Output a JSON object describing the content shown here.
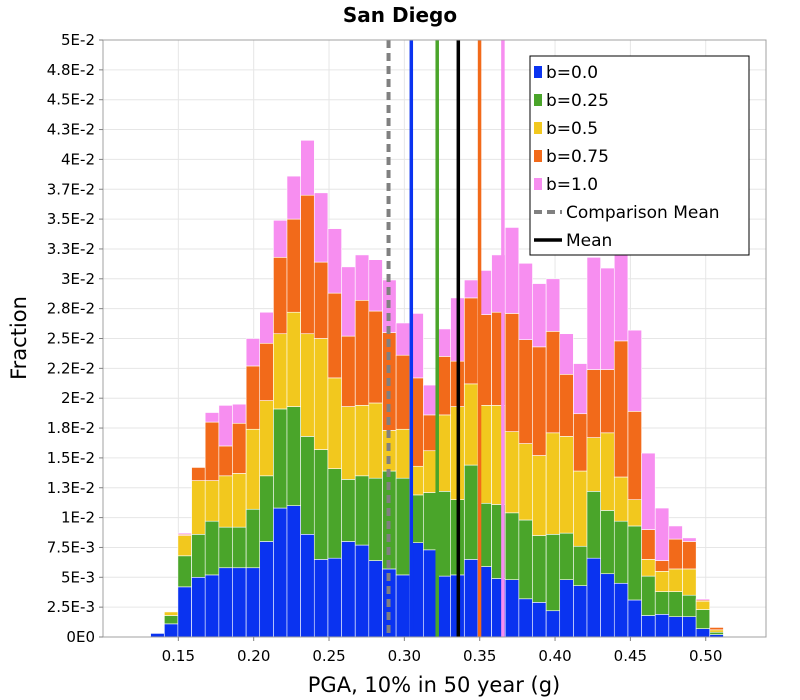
{
  "chart_data": {
    "type": "bar",
    "stacked": true,
    "title": "San Diego",
    "xlabel": "PGA, 10% in 50 year (g)",
    "ylabel": "Fraction",
    "xlim": [
      0.1,
      0.54
    ],
    "ylim": [
      0,
      0.05
    ],
    "grid": true,
    "legend_position": "top-right",
    "xticks": [
      {
        "value": 0.15,
        "label": "0.15"
      },
      {
        "value": 0.2,
        "label": "0.20"
      },
      {
        "value": 0.25,
        "label": "0.25"
      },
      {
        "value": 0.3,
        "label": "0.30"
      },
      {
        "value": 0.35,
        "label": "0.35"
      },
      {
        "value": 0.4,
        "label": "0.40"
      },
      {
        "value": 0.45,
        "label": "0.45"
      },
      {
        "value": 0.5,
        "label": "0.50"
      }
    ],
    "yticks": [
      {
        "value": 0,
        "label": "0E0"
      },
      {
        "value": 0.0025,
        "label": "2.5E-3"
      },
      {
        "value": 0.005,
        "label": "5E-3"
      },
      {
        "value": 0.0075,
        "label": "7.5E-3"
      },
      {
        "value": 0.01,
        "label": "1E-2"
      },
      {
        "value": 0.0125,
        "label": "1.3E-2"
      },
      {
        "value": 0.015,
        "label": "1.5E-2"
      },
      {
        "value": 0.0175,
        "label": "1.8E-2"
      },
      {
        "value": 0.02,
        "label": "2E-2"
      },
      {
        "value": 0.0225,
        "label": "2.2E-2"
      },
      {
        "value": 0.025,
        "label": "2.5E-2"
      },
      {
        "value": 0.0275,
        "label": "2.8E-2"
      },
      {
        "value": 0.03,
        "label": "3E-2"
      },
      {
        "value": 0.0325,
        "label": "3.3E-2"
      },
      {
        "value": 0.035,
        "label": "3.5E-2"
      },
      {
        "value": 0.0375,
        "label": "3.7E-2"
      },
      {
        "value": 0.04,
        "label": "4E-2"
      },
      {
        "value": 0.0425,
        "label": "4.3E-2"
      },
      {
        "value": 0.045,
        "label": "4.5E-2"
      },
      {
        "value": 0.0475,
        "label": "4.8E-2"
      },
      {
        "value": 0.05,
        "label": "5E-2"
      }
    ],
    "bin_width": 0.00905,
    "bin_starts": [
      0.1316,
      0.1407,
      0.1497,
      0.1588,
      0.1678,
      0.1769,
      0.1859,
      0.195,
      0.204,
      0.2131,
      0.2221,
      0.2312,
      0.2402,
      0.2493,
      0.2583,
      0.2674,
      0.2764,
      0.2855,
      0.2945,
      0.3036,
      0.3126,
      0.3217,
      0.3307,
      0.3398,
      0.3488,
      0.3579,
      0.3669,
      0.376,
      0.385,
      0.3941,
      0.4031,
      0.4122,
      0.4212,
      0.4303,
      0.4393,
      0.4484,
      0.4574,
      0.4665,
      0.4755,
      0.4846,
      0.4936,
      0.5027,
      0.5117
    ],
    "series": [
      {
        "name": "b=0.0",
        "color": "#0a33f0",
        "values": [
          0.0003,
          0.0011,
          0.0042,
          0.005,
          0.0052,
          0.0058,
          0.0058,
          0.0058,
          0.008,
          0.0108,
          0.011,
          0.0086,
          0.0065,
          0.0066,
          0.008,
          0.0077,
          0.0064,
          0.0057,
          0.0052,
          0.0079,
          0.0073,
          0.0051,
          0.0052,
          0.0065,
          0.0059,
          0.0049,
          0.0048,
          0.0032,
          0.0029,
          0.0022,
          0.0048,
          0.0043,
          0.0066,
          0.0053,
          0.0045,
          0.0031,
          0.0018,
          0.0019,
          0.0017,
          0.0017,
          0.0007,
          0.0002,
          0.0
        ]
      },
      {
        "name": "b=0.25",
        "color": "#4aa52a",
        "values": [
          0.0,
          0.0007,
          0.0026,
          0.0036,
          0.0045,
          0.0034,
          0.0034,
          0.0049,
          0.0055,
          0.0083,
          0.0083,
          0.0082,
          0.0092,
          0.0075,
          0.0052,
          0.0058,
          0.0069,
          0.0082,
          0.0081,
          0.004,
          0.0048,
          0.0071,
          0.0063,
          0.0079,
          0.0053,
          0.0062,
          0.0056,
          0.0066,
          0.0056,
          0.0064,
          0.0039,
          0.0033,
          0.0056,
          0.0053,
          0.0052,
          0.0062,
          0.0033,
          0.0019,
          0.0021,
          0.0018,
          0.0016,
          0.0002,
          0.0
        ]
      },
      {
        "name": "b=0.5",
        "color": "#f2c81e",
        "values": [
          0.0,
          0.0003,
          0.0017,
          0.0045,
          0.0034,
          0.0043,
          0.0045,
          0.0067,
          0.0063,
          0.0063,
          0.0079,
          0.0086,
          0.0093,
          0.0076,
          0.0061,
          0.0059,
          0.0063,
          0.0034,
          0.0041,
          0.0024,
          0.0035,
          0.0064,
          0.0078,
          0.0068,
          0.0082,
          0.0083,
          0.0068,
          0.0064,
          0.0067,
          0.0085,
          0.0081,
          0.0063,
          0.0045,
          0.0065,
          0.0037,
          0.0022,
          0.0014,
          0.0017,
          0.0019,
          0.0022,
          0.0007,
          0.0002,
          0.0
        ]
      },
      {
        "name": "b=0.75",
        "color": "#f26a1a",
        "values": [
          0.0,
          0.0,
          0.0001,
          0.0011,
          0.0049,
          0.0025,
          0.0042,
          0.0053,
          0.0048,
          0.0064,
          0.0078,
          0.0116,
          0.0064,
          0.0071,
          0.0059,
          0.0088,
          0.0077,
          0.0082,
          0.0062,
          0.0074,
          0.003,
          0.0049,
          0.0038,
          0.0072,
          0.0076,
          0.0078,
          0.0099,
          0.0087,
          0.0091,
          0.0085,
          0.0052,
          0.0048,
          0.0057,
          0.0053,
          0.0114,
          0.0074,
          0.0025,
          0.0009,
          0.0025,
          0.0023,
          0.0001,
          0.0002,
          0.0
        ]
      },
      {
        "name": "b=1.0",
        "color": "#f78ef0",
        "values": [
          0.0,
          0.0,
          0.0001,
          0.0,
          0.0008,
          0.0034,
          0.0016,
          0.0023,
          0.0026,
          0.0031,
          0.0036,
          0.0046,
          0.0058,
          0.0054,
          0.0058,
          0.0038,
          0.0043,
          0.0044,
          0.0027,
          0.0054,
          0.0025,
          0.0023,
          0.0053,
          0.0015,
          0.0037,
          0.0048,
          0.0072,
          0.0064,
          0.0053,
          0.0044,
          0.0034,
          0.0042,
          0.0094,
          0.0085,
          0.0086,
          0.0068,
          0.0064,
          0.0044,
          0.0011,
          0.0003,
          0.0001,
          0.0,
          0.0
        ]
      }
    ],
    "reference_lines": [
      {
        "name": "Comparison Mean",
        "x": 0.2895,
        "color": "#808080",
        "style": "dashed"
      },
      {
        "name": "Mean",
        "x": 0.3358,
        "color": "#000000",
        "style": "solid"
      },
      {
        "name": "b=0.0 mean",
        "x": 0.3046,
        "color": "#0a33f0",
        "style": "solid"
      },
      {
        "name": "b=0.25 mean",
        "x": 0.3218,
        "color": "#4aa52a",
        "style": "solid"
      },
      {
        "name": "b=0.75 mean",
        "x": 0.3499,
        "color": "#f26a1a",
        "style": "solid"
      },
      {
        "name": "b=1.0 mean",
        "x": 0.3654,
        "color": "#f78ef0",
        "style": "solid"
      }
    ],
    "legend": [
      {
        "label": "b=0.0",
        "kind": "box",
        "color": "#0a33f0"
      },
      {
        "label": "b=0.25",
        "kind": "box",
        "color": "#4aa52a"
      },
      {
        "label": "b=0.5",
        "kind": "box",
        "color": "#f2c81e"
      },
      {
        "label": "b=0.75",
        "kind": "box",
        "color": "#f26a1a"
      },
      {
        "label": "b=1.0",
        "kind": "box",
        "color": "#f78ef0"
      },
      {
        "label": "Comparison Mean",
        "kind": "dashed",
        "color": "#808080"
      },
      {
        "label": "Mean",
        "kind": "solid",
        "color": "#000000"
      }
    ]
  }
}
